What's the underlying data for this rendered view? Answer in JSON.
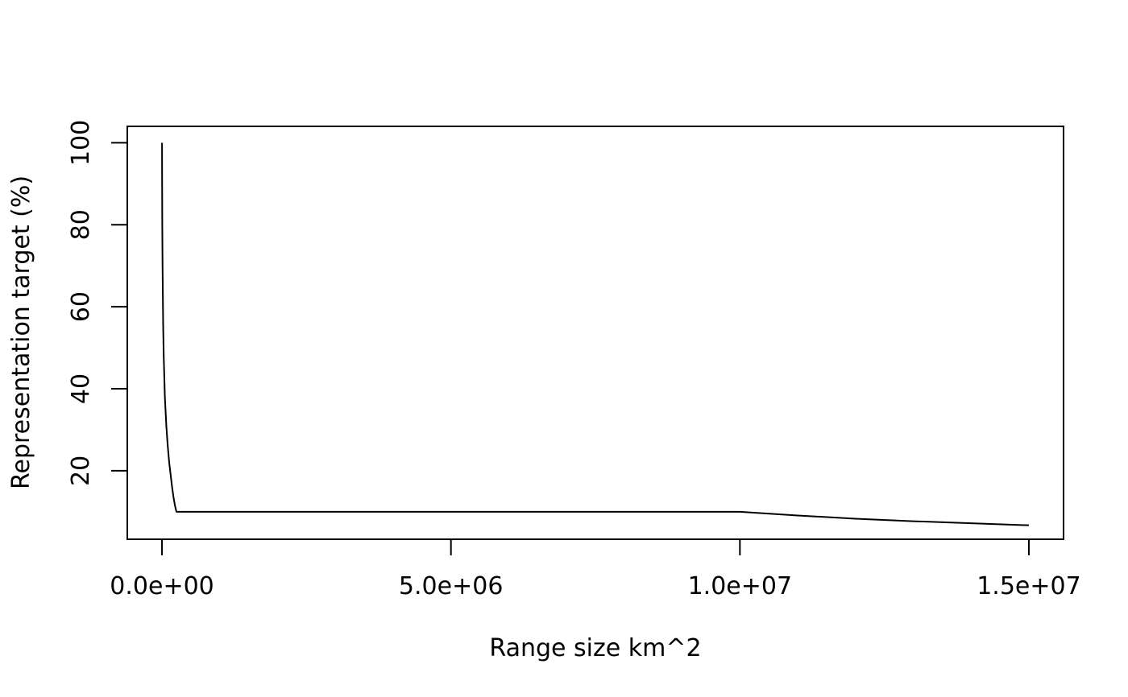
{
  "chart_data": {
    "type": "line",
    "title": "",
    "xlabel": "Range size km^2",
    "ylabel": "Representation target (%)",
    "xlim": [
      -600000,
      15600000
    ],
    "ylim": [
      3.3,
      104
    ],
    "x_ticks": [
      0,
      5000000,
      10000000,
      15000000
    ],
    "x_tick_labels": [
      "0.0e+00",
      "5.0e+06",
      "1.0e+07",
      "1.5e+07"
    ],
    "y_ticks": [
      20,
      40,
      60,
      80,
      100
    ],
    "y_tick_labels": [
      "20",
      "40",
      "60",
      "80",
      "100"
    ],
    "grid": false,
    "legend": "none",
    "series": [
      {
        "line_color": "#000000",
        "x": [
          1000,
          2000,
          5000,
          10000,
          20000,
          30000,
          50000,
          75000,
          100000,
          125000,
          150000,
          175000,
          200000,
          225000,
          250000,
          10000000,
          11000000,
          12000000,
          13000000,
          14000000,
          15000000
        ],
        "y": [
          100,
          92,
          80,
          70,
          56,
          48,
          38,
          31,
          26,
          22,
          19,
          16,
          13.5,
          11.5,
          10,
          10,
          9.1,
          8.3,
          7.7,
          7.2,
          6.7
        ]
      }
    ]
  }
}
